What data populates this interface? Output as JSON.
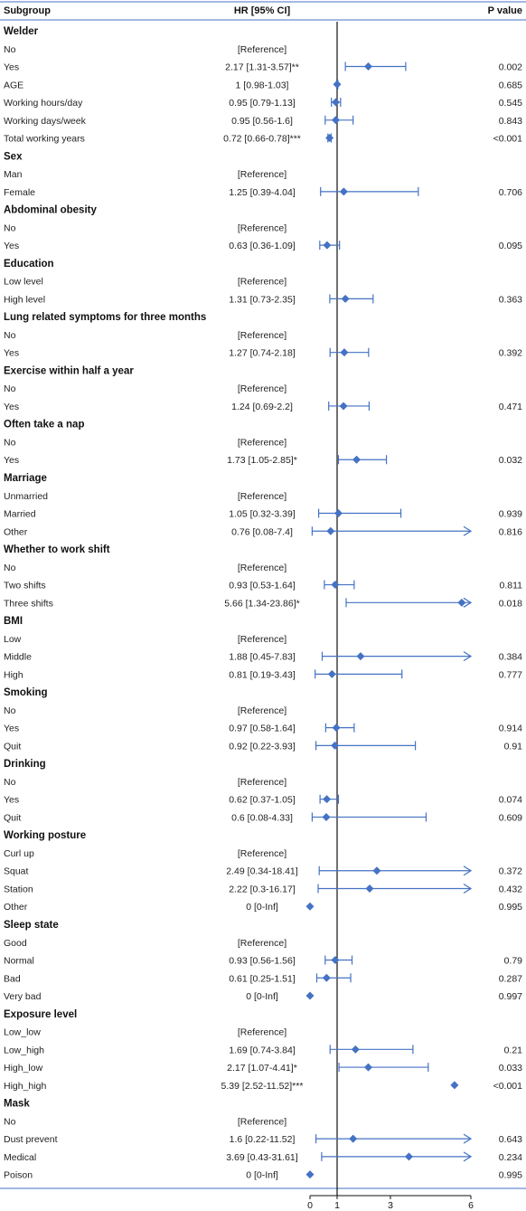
{
  "header": {
    "subgroup": "Subgroup",
    "hr": "HR [95% CI]",
    "pvalue": "P value"
  },
  "chart_data": {
    "type": "forest",
    "x_ticks": [
      0,
      1,
      3,
      6
    ],
    "xlim": [
      0,
      6
    ],
    "reference_line": 1,
    "color": "#4472c4",
    "rows": [
      {
        "kind": "group",
        "label": "Welder"
      },
      {
        "label": "No",
        "hr_text": "[Reference]",
        "p": ""
      },
      {
        "label": "Yes",
        "hr_text": "2.17 [1.31-3.57]**",
        "p": "0.002",
        "hr": 2.17,
        "lo": 1.31,
        "hi": 3.57
      },
      {
        "label": "AGE",
        "hr_text": "1 [0.98-1.03]",
        "p": "0.685",
        "hr": 1,
        "lo": 0.98,
        "hi": 1.03
      },
      {
        "label": "Working hours/day",
        "hr_text": "0.95 [0.79-1.13]",
        "p": "0.545",
        "hr": 0.95,
        "lo": 0.79,
        "hi": 1.13
      },
      {
        "label": "Working days/week",
        "hr_text": "0.95 [0.56-1.6]",
        "p": "0.843",
        "hr": 0.95,
        "lo": 0.56,
        "hi": 1.6
      },
      {
        "label": "Total working years",
        "hr_text": "0.72 [0.66-0.78]***",
        "p": "<0.001",
        "hr": 0.72,
        "lo": 0.66,
        "hi": 0.78
      },
      {
        "kind": "group",
        "label": "Sex"
      },
      {
        "label": "Man",
        "hr_text": "[Reference]",
        "p": ""
      },
      {
        "label": "Female",
        "hr_text": "1.25 [0.39-4.04]",
        "p": "0.706",
        "hr": 1.25,
        "lo": 0.39,
        "hi": 4.04
      },
      {
        "kind": "group",
        "label": "Abdominal obesity"
      },
      {
        "label": "No",
        "hr_text": "[Reference]",
        "p": ""
      },
      {
        "label": "Yes",
        "hr_text": "0.63 [0.36-1.09]",
        "p": "0.095",
        "hr": 0.63,
        "lo": 0.36,
        "hi": 1.09
      },
      {
        "kind": "group",
        "label": "Education"
      },
      {
        "label": "Low level",
        "hr_text": "[Reference]",
        "p": ""
      },
      {
        "label": "High level",
        "hr_text": "1.31 [0.73-2.35]",
        "p": "0.363",
        "hr": 1.31,
        "lo": 0.73,
        "hi": 2.35
      },
      {
        "kind": "group",
        "label": "Lung related symptoms for three months"
      },
      {
        "label": "No",
        "hr_text": "[Reference]",
        "p": ""
      },
      {
        "label": "Yes",
        "hr_text": "1.27 [0.74-2.18]",
        "p": "0.392",
        "hr": 1.27,
        "lo": 0.74,
        "hi": 2.18
      },
      {
        "kind": "group",
        "label": "Exercise within half a year"
      },
      {
        "label": "No",
        "hr_text": "[Reference]",
        "p": ""
      },
      {
        "label": "Yes",
        "hr_text": "1.24 [0.69-2.2]",
        "p": "0.471",
        "hr": 1.24,
        "lo": 0.69,
        "hi": 2.2
      },
      {
        "kind": "group",
        "label": "Often take a nap"
      },
      {
        "label": "No",
        "hr_text": "[Reference]",
        "p": ""
      },
      {
        "label": "Yes",
        "hr_text": "1.73 [1.05-2.85]*",
        "p": "0.032",
        "hr": 1.73,
        "lo": 1.05,
        "hi": 2.85
      },
      {
        "kind": "group",
        "label": "Marriage"
      },
      {
        "label": "Unmarried",
        "hr_text": "[Reference]",
        "p": ""
      },
      {
        "label": "Married",
        "hr_text": "1.05 [0.32-3.39]",
        "p": "0.939",
        "hr": 1.05,
        "lo": 0.32,
        "hi": 3.39
      },
      {
        "label": "Other",
        "hr_text": "0.76 [0.08-7.4]",
        "p": "0.816",
        "hr": 0.76,
        "lo": 0.08,
        "hi": 7.4
      },
      {
        "kind": "group",
        "label": "Whether to work shift"
      },
      {
        "label": "No",
        "hr_text": "[Reference]",
        "p": ""
      },
      {
        "label": "Two shifts",
        "hr_text": "0.93 [0.53-1.64]",
        "p": "0.811",
        "hr": 0.93,
        "lo": 0.53,
        "hi": 1.64
      },
      {
        "label": "Three shifts",
        "hr_text": "5.66 [1.34-23.86]*",
        "p": "0.018",
        "hr": 5.66,
        "lo": 1.34,
        "hi": 23.86
      },
      {
        "kind": "group",
        "label": "BMI"
      },
      {
        "label": "Low",
        "hr_text": "[Reference]",
        "p": ""
      },
      {
        "label": "Middle",
        "hr_text": "1.88 [0.45-7.83]",
        "p": "0.384",
        "hr": 1.88,
        "lo": 0.45,
        "hi": 7.83
      },
      {
        "label": "High",
        "hr_text": "0.81 [0.19-3.43]",
        "p": "0.777",
        "hr": 0.81,
        "lo": 0.19,
        "hi": 3.43
      },
      {
        "kind": "group",
        "label": "Smoking"
      },
      {
        "label": "No",
        "hr_text": "[Reference]",
        "p": ""
      },
      {
        "label": "Yes",
        "hr_text": "0.97 [0.58-1.64]",
        "p": "0.914",
        "hr": 0.97,
        "lo": 0.58,
        "hi": 1.64
      },
      {
        "label": "Quit",
        "hr_text": "0.92 [0.22-3.93]",
        "p": "0.91",
        "hr": 0.92,
        "lo": 0.22,
        "hi": 3.93
      },
      {
        "kind": "group",
        "label": "Drinking"
      },
      {
        "label": "No",
        "hr_text": "[Reference]",
        "p": ""
      },
      {
        "label": "Yes",
        "hr_text": "0.62 [0.37-1.05]",
        "p": "0.074",
        "hr": 0.62,
        "lo": 0.37,
        "hi": 1.05
      },
      {
        "label": "Quit",
        "hr_text": "0.6 [0.08-4.33]",
        "p": "0.609",
        "hr": 0.6,
        "lo": 0.08,
        "hi": 4.33
      },
      {
        "kind": "group",
        "label": "Working posture"
      },
      {
        "label": "Curl up",
        "hr_text": "[Reference]",
        "p": ""
      },
      {
        "label": "Squat",
        "hr_text": "2.49 [0.34-18.41]",
        "p": "0.372",
        "hr": 2.49,
        "lo": 0.34,
        "hi": 18.41
      },
      {
        "label": "Station",
        "hr_text": "2.22 [0.3-16.17]",
        "p": "0.432",
        "hr": 2.22,
        "lo": 0.3,
        "hi": 16.17
      },
      {
        "label": "Other",
        "hr_text": "0 [0-Inf]",
        "p": "0.995",
        "hr": 0,
        "lo": 0,
        "hi": null
      },
      {
        "kind": "group",
        "label": "Sleep state"
      },
      {
        "label": "Good",
        "hr_text": "[Reference]",
        "p": ""
      },
      {
        "label": "Normal",
        "hr_text": "0.93 [0.56-1.56]",
        "p": "0.79",
        "hr": 0.93,
        "lo": 0.56,
        "hi": 1.56
      },
      {
        "label": "Bad",
        "hr_text": "0.61 [0.25-1.51]",
        "p": "0.287",
        "hr": 0.61,
        "lo": 0.25,
        "hi": 1.51
      },
      {
        "label": "Very bad",
        "hr_text": "0 [0-Inf]",
        "p": "0.997",
        "hr": 0,
        "lo": 0,
        "hi": null
      },
      {
        "kind": "group",
        "label": "Exposure level"
      },
      {
        "label": "Low_low",
        "hr_text": "[Reference]",
        "p": ""
      },
      {
        "label": "Low_high",
        "hr_text": "1.69 [0.74-3.84]",
        "p": "0.21",
        "hr": 1.69,
        "lo": 0.74,
        "hi": 3.84
      },
      {
        "label": "High_low",
        "hr_text": "2.17 [1.07-4.41]*",
        "p": "0.033",
        "hr": 2.17,
        "lo": 1.07,
        "hi": 4.41
      },
      {
        "label": "High_high",
        "hr_text": "5.39 [2.52-11.52]***",
        "p": "<0.001",
        "hr": 5.39,
        "lo": 2.52,
        "hi": 11.52
      },
      {
        "kind": "group",
        "label": "Mask"
      },
      {
        "label": "No",
        "hr_text": "[Reference]",
        "p": ""
      },
      {
        "label": "Dust prevent",
        "hr_text": "1.6 [0.22-11.52]",
        "p": "0.643",
        "hr": 1.6,
        "lo": 0.22,
        "hi": 11.52
      },
      {
        "label": "Medical",
        "hr_text": "3.69 [0.43-31.61]",
        "p": "0.234",
        "hr": 3.69,
        "lo": 0.43,
        "hi": 31.61
      },
      {
        "label": "Poison",
        "hr_text": "0 [0-Inf]",
        "p": "0.995",
        "hr": 0,
        "lo": 0,
        "hi": null
      }
    ]
  }
}
